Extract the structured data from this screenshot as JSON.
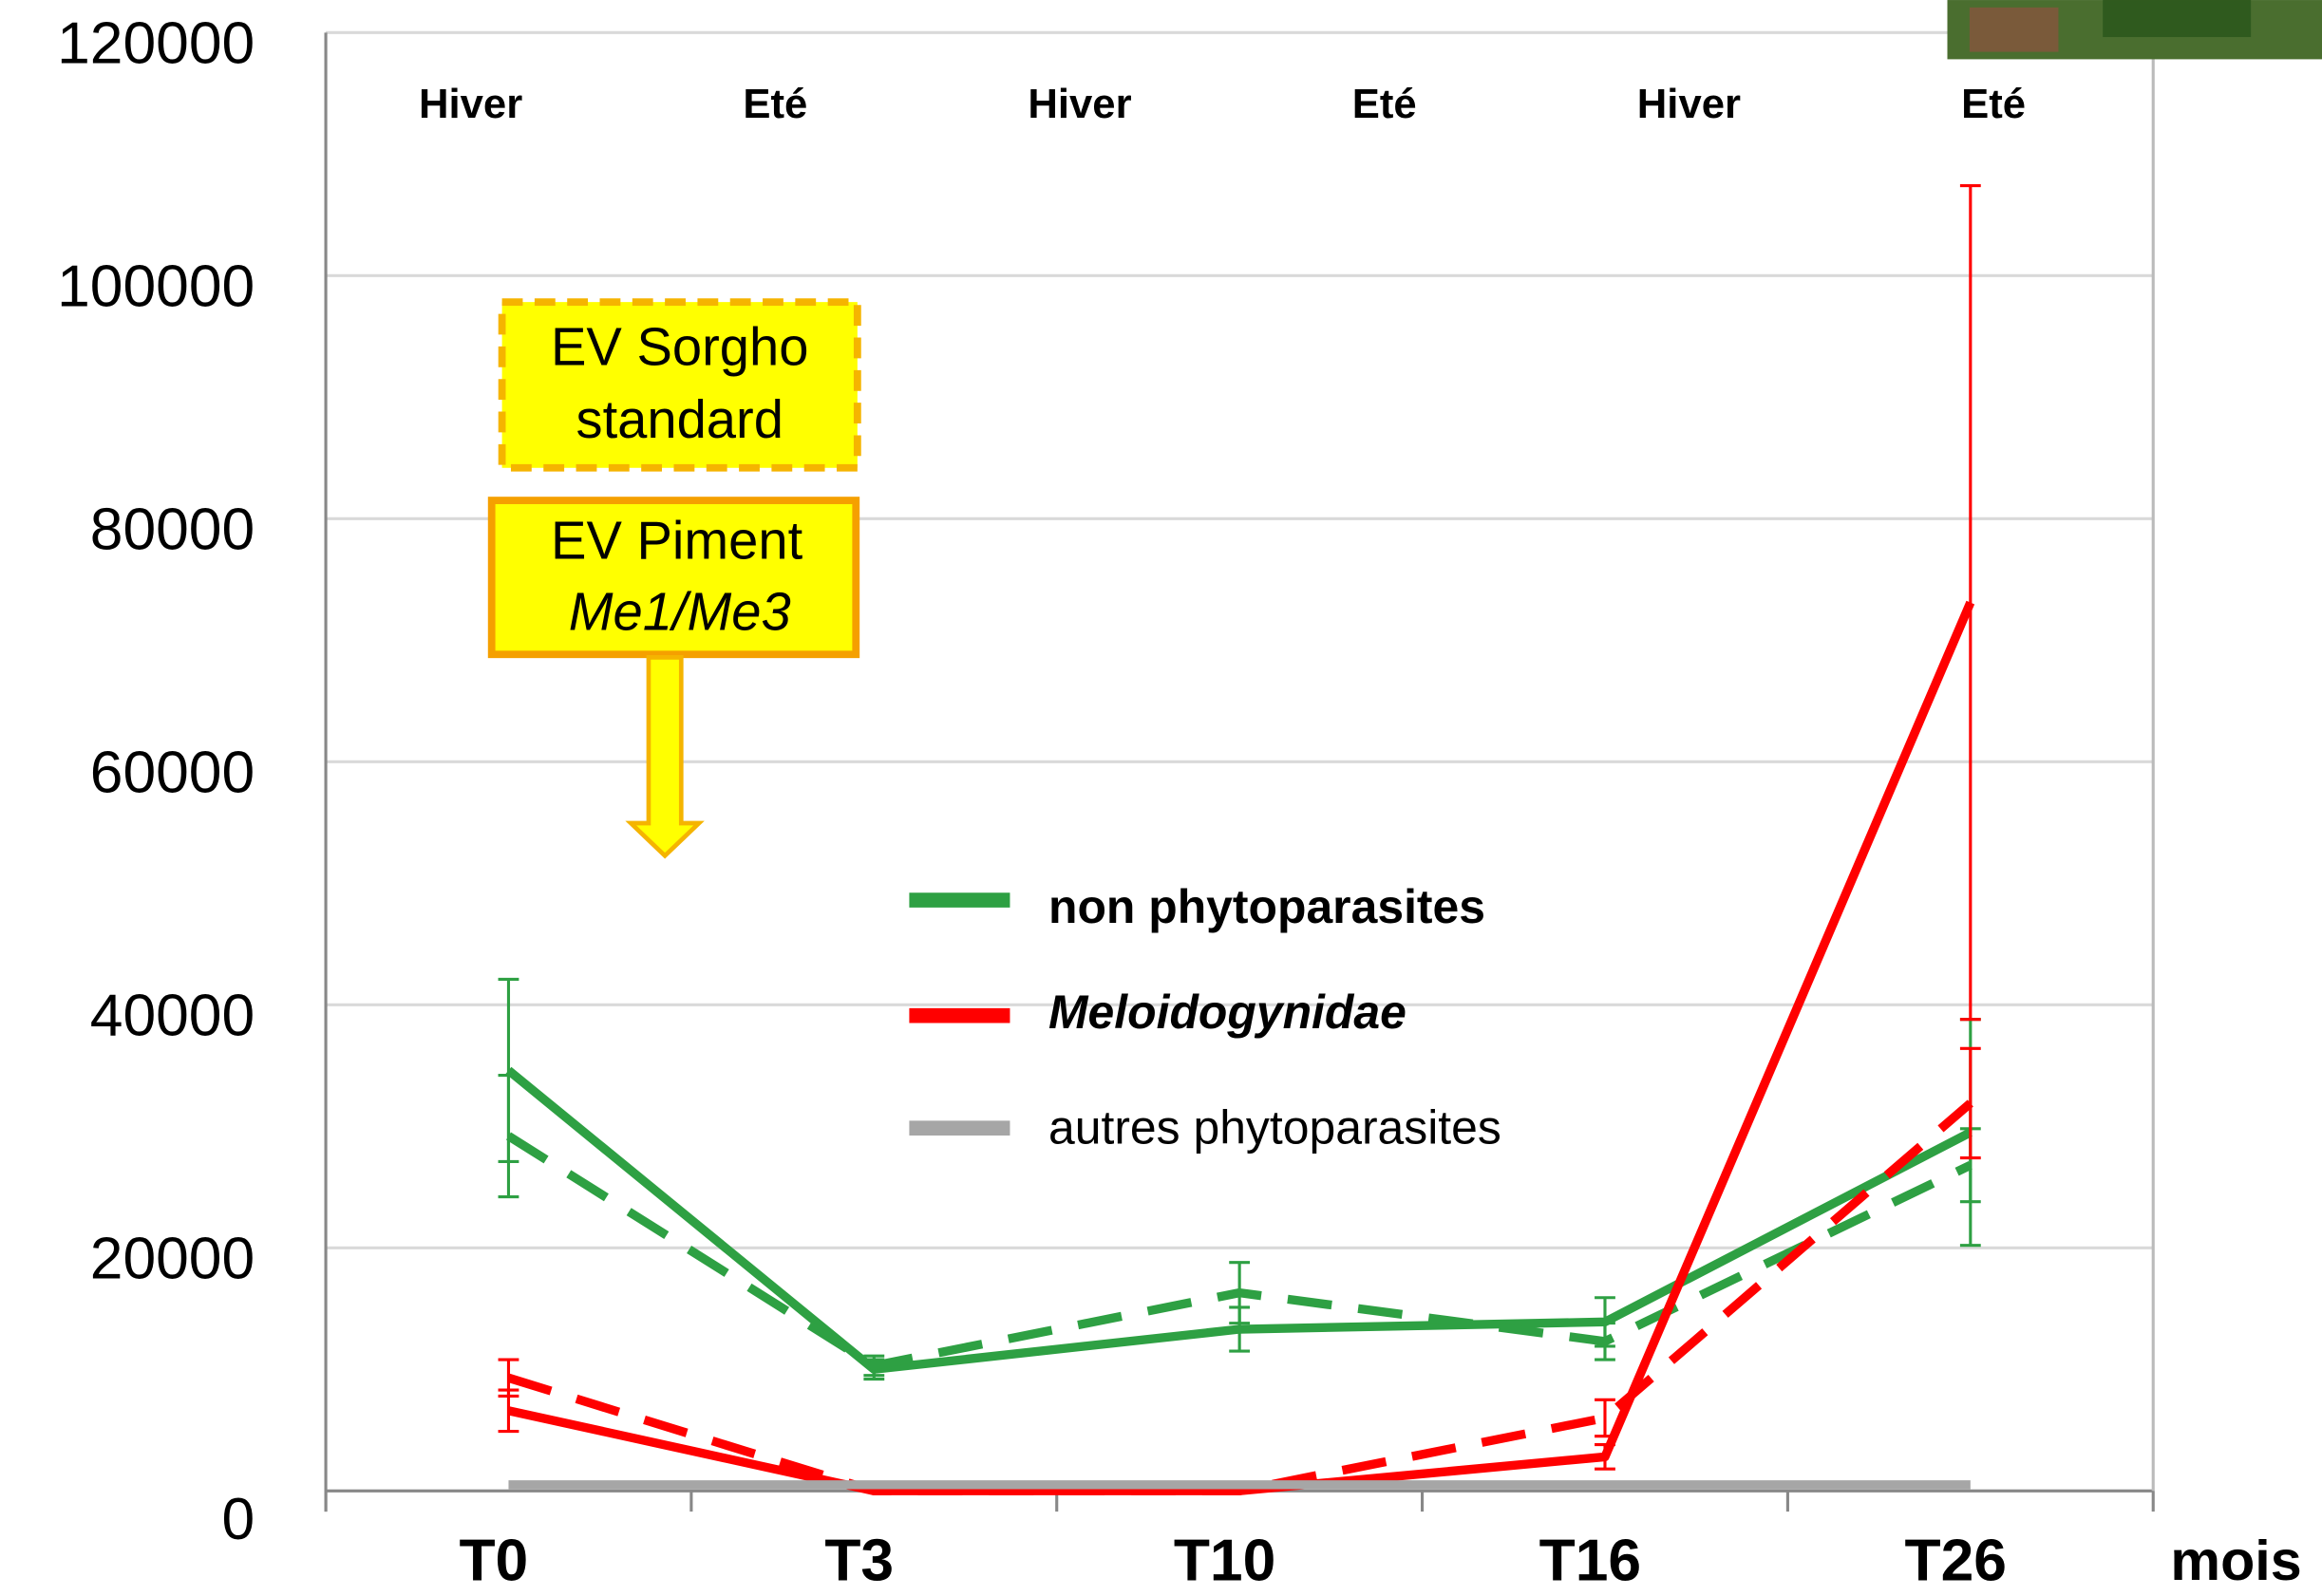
{
  "chart_data": {
    "type": "line",
    "categories": [
      "T0",
      "T3",
      "T10",
      "T16",
      "T26"
    ],
    "x_label": "mois",
    "ylim": [
      0,
      120000
    ],
    "yticks": [
      0,
      20000,
      40000,
      60000,
      80000,
      100000,
      120000
    ],
    "grid": true,
    "seasons": [
      "Hiver",
      "Eté",
      "Hiver",
      "Eté",
      "Hiver",
      "Eté"
    ],
    "annotations": [
      {
        "lines": [
          "EV Sorgho",
          "standard"
        ]
      },
      {
        "lines": [
          "EV Piment",
          "Me1/Me3"
        ]
      }
    ],
    "series": [
      {
        "name": "non phytoparasites",
        "color": "#2ea043",
        "dash": false,
        "values": [
          34600,
          10000,
          13300,
          13900,
          29500
        ],
        "errors": [
          7500,
          800,
          1800,
          2000,
          9300
        ]
      },
      {
        "color": "#2ea043",
        "dash": true,
        "values": [
          29200,
          10300,
          16300,
          12300,
          26800
        ],
        "errors": [
          5000,
          800,
          2500,
          1500,
          3000
        ]
      },
      {
        "name": "Meloidogynidae",
        "color": "#ff0000",
        "dash": false,
        "values": [
          6600,
          0,
          0,
          2800,
          73100
        ],
        "errors": [
          1700,
          0,
          0,
          1000,
          34300
        ]
      },
      {
        "color": "#ff0000",
        "dash": true,
        "values": [
          9300,
          0,
          0,
          6000,
          31900
        ],
        "errors": [
          1500,
          0,
          0,
          1500,
          4500
        ]
      },
      {
        "name": "autres phytoparasites",
        "color": "#a6a6a6",
        "dash": false,
        "values": [
          500,
          500,
          500,
          500,
          500
        ],
        "errors": [
          0,
          0,
          0,
          0,
          0
        ]
      }
    ]
  }
}
